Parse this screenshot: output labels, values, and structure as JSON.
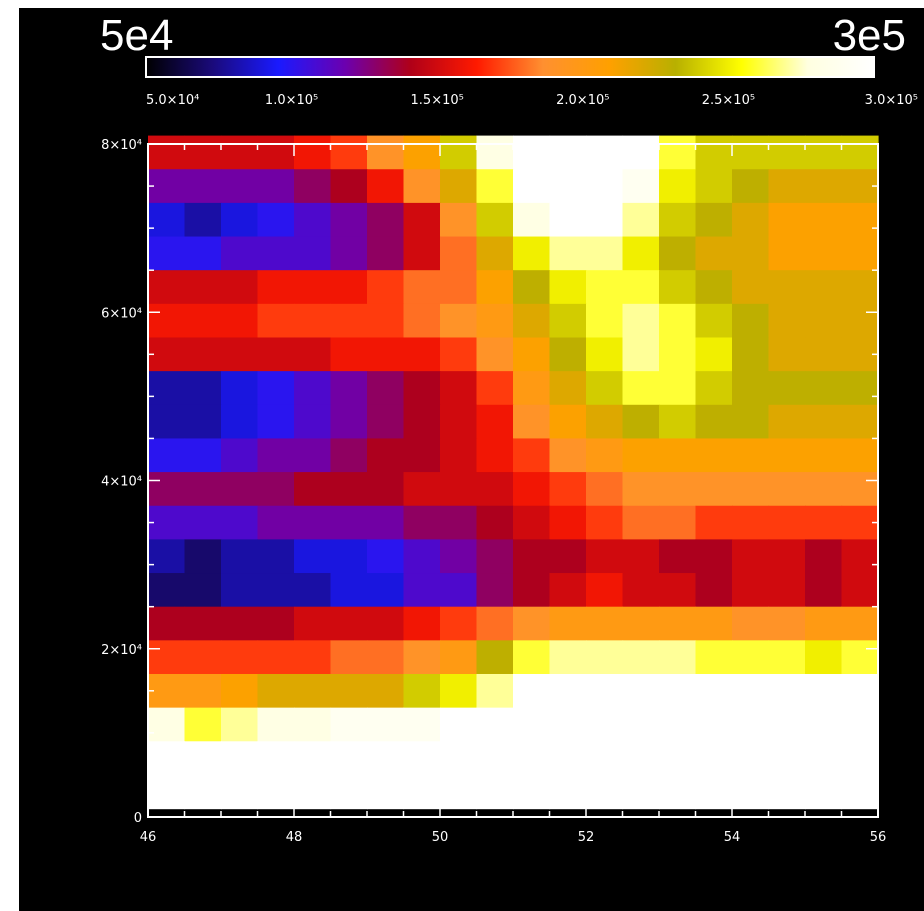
{
  "colorbar": {
    "min_label": "5e4",
    "max_label": "3e5",
    "range": [
      50000,
      300000
    ],
    "ticks": [
      {
        "value": 50000,
        "label": "5.0×10⁴"
      },
      {
        "value": 100000,
        "label": "1.0×10⁵"
      },
      {
        "value": 150000,
        "label": "1.5×10⁵"
      },
      {
        "value": 200000,
        "label": "2.0×10⁵"
      },
      {
        "value": 250000,
        "label": "2.5×10⁵"
      },
      {
        "value": 300000,
        "label": "3.0×10⁵"
      }
    ],
    "colors": [
      "#000000",
      "#1a0a7a",
      "#1a1aff",
      "#6b00b0",
      "#b00018",
      "#ff1a00",
      "#ff9030",
      "#ffa000",
      "#b8b000",
      "#ffff00",
      "#ffffe0",
      "#ffffff"
    ]
  },
  "chart_data": {
    "type": "heatmap",
    "title": "",
    "xlabel": "",
    "ylabel": "",
    "xlim": [
      46,
      56
    ],
    "ylim": [
      0,
      80000
    ],
    "x_ticks": [
      {
        "value": 46,
        "label": "46"
      },
      {
        "value": 48,
        "label": "48"
      },
      {
        "value": 50,
        "label": "50"
      },
      {
        "value": 52,
        "label": "52"
      },
      {
        "value": 54,
        "label": "54"
      },
      {
        "value": 56,
        "label": "56"
      }
    ],
    "y_ticks": [
      {
        "value": 0,
        "label": "0"
      },
      {
        "value": 20000,
        "label": "2×10⁴"
      },
      {
        "value": 40000,
        "label": "4×10⁴"
      },
      {
        "value": 60000,
        "label": "6×10⁴"
      },
      {
        "value": 80000,
        "label": "8×10⁴"
      }
    ],
    "x_centers": [
      46.25,
      46.75,
      47.25,
      47.75,
      48.25,
      48.75,
      49.25,
      49.75,
      50.25,
      50.75,
      51.25,
      51.75,
      52.25,
      52.75,
      53.25,
      53.75,
      54.25,
      54.75,
      55.25,
      55.75
    ],
    "y_centers": [
      79000,
      75000,
      71000,
      67000,
      63000,
      59000,
      55000,
      51000,
      47000,
      43000,
      39000,
      35000,
      31000,
      27000,
      23000,
      19000,
      15000,
      11000,
      7000,
      3000
    ],
    "z": [
      [
        150000,
        150000,
        150000,
        150000,
        160000,
        170000,
        190000,
        210000,
        240000,
        280000,
        300000,
        300000,
        300000,
        300000,
        260000,
        240000,
        240000,
        240000,
        240000,
        240000
      ],
      [
        120000,
        120000,
        120000,
        120000,
        130000,
        140000,
        160000,
        190000,
        220000,
        260000,
        300000,
        300000,
        300000,
        290000,
        250000,
        240000,
        230000,
        220000,
        220000,
        220000
      ],
      [
        90000,
        80000,
        90000,
        100000,
        110000,
        120000,
        130000,
        150000,
        190000,
        240000,
        280000,
        300000,
        300000,
        270000,
        240000,
        230000,
        220000,
        210000,
        210000,
        210000
      ],
      [
        100000,
        100000,
        110000,
        110000,
        110000,
        120000,
        130000,
        150000,
        180000,
        220000,
        250000,
        270000,
        270000,
        250000,
        230000,
        220000,
        220000,
        210000,
        210000,
        210000
      ],
      [
        150000,
        150000,
        150000,
        160000,
        160000,
        160000,
        170000,
        180000,
        180000,
        210000,
        230000,
        250000,
        260000,
        260000,
        240000,
        230000,
        220000,
        220000,
        220000,
        220000
      ],
      [
        160000,
        160000,
        160000,
        170000,
        170000,
        170000,
        170000,
        180000,
        190000,
        200000,
        220000,
        240000,
        260000,
        270000,
        260000,
        240000,
        230000,
        220000,
        220000,
        220000
      ],
      [
        150000,
        150000,
        150000,
        150000,
        150000,
        160000,
        160000,
        160000,
        170000,
        190000,
        210000,
        230000,
        250000,
        270000,
        260000,
        250000,
        230000,
        220000,
        220000,
        220000
      ],
      [
        80000,
        80000,
        90000,
        100000,
        110000,
        120000,
        130000,
        140000,
        150000,
        170000,
        200000,
        220000,
        240000,
        260000,
        260000,
        240000,
        230000,
        230000,
        230000,
        230000
      ],
      [
        80000,
        80000,
        90000,
        100000,
        110000,
        120000,
        130000,
        140000,
        150000,
        160000,
        190000,
        210000,
        220000,
        230000,
        240000,
        230000,
        230000,
        220000,
        220000,
        220000
      ],
      [
        100000,
        100000,
        110000,
        120000,
        120000,
        130000,
        140000,
        140000,
        150000,
        160000,
        170000,
        190000,
        200000,
        210000,
        210000,
        210000,
        210000,
        210000,
        210000,
        210000
      ],
      [
        130000,
        130000,
        130000,
        130000,
        140000,
        140000,
        140000,
        150000,
        150000,
        150000,
        160000,
        170000,
        180000,
        190000,
        190000,
        190000,
        190000,
        190000,
        190000,
        190000
      ],
      [
        110000,
        110000,
        110000,
        120000,
        120000,
        120000,
        120000,
        130000,
        130000,
        140000,
        150000,
        160000,
        170000,
        180000,
        180000,
        170000,
        170000,
        170000,
        170000,
        170000
      ],
      [
        80000,
        70000,
        80000,
        80000,
        90000,
        90000,
        100000,
        110000,
        120000,
        130000,
        140000,
        140000,
        150000,
        150000,
        140000,
        140000,
        150000,
        150000,
        140000,
        150000
      ],
      [
        70000,
        70000,
        80000,
        80000,
        80000,
        90000,
        90000,
        110000,
        110000,
        130000,
        140000,
        150000,
        160000,
        150000,
        150000,
        140000,
        150000,
        150000,
        140000,
        150000
      ],
      [
        140000,
        140000,
        140000,
        140000,
        150000,
        150000,
        150000,
        160000,
        170000,
        180000,
        190000,
        200000,
        200000,
        200000,
        200000,
        200000,
        190000,
        190000,
        200000,
        200000
      ],
      [
        170000,
        170000,
        170000,
        170000,
        170000,
        180000,
        180000,
        190000,
        200000,
        230000,
        260000,
        270000,
        270000,
        270000,
        270000,
        260000,
        260000,
        260000,
        250000,
        260000
      ],
      [
        200000,
        200000,
        210000,
        220000,
        220000,
        220000,
        220000,
        240000,
        250000,
        270000,
        300000,
        300000,
        300000,
        300000,
        300000,
        300000,
        300000,
        300000,
        300000,
        300000
      ],
      [
        280000,
        260000,
        270000,
        280000,
        280000,
        290000,
        290000,
        290000,
        300000,
        300000,
        300000,
        300000,
        300000,
        300000,
        300000,
        300000,
        300000,
        300000,
        300000,
        300000
      ],
      [
        300000,
        300000,
        300000,
        300000,
        300000,
        300000,
        300000,
        300000,
        300000,
        300000,
        300000,
        300000,
        300000,
        300000,
        300000,
        300000,
        300000,
        300000,
        300000,
        300000
      ],
      [
        300000,
        300000,
        300000,
        300000,
        300000,
        300000,
        300000,
        300000,
        300000,
        300000,
        300000,
        300000,
        300000,
        300000,
        300000,
        300000,
        300000,
        300000,
        300000,
        300000
      ]
    ]
  }
}
